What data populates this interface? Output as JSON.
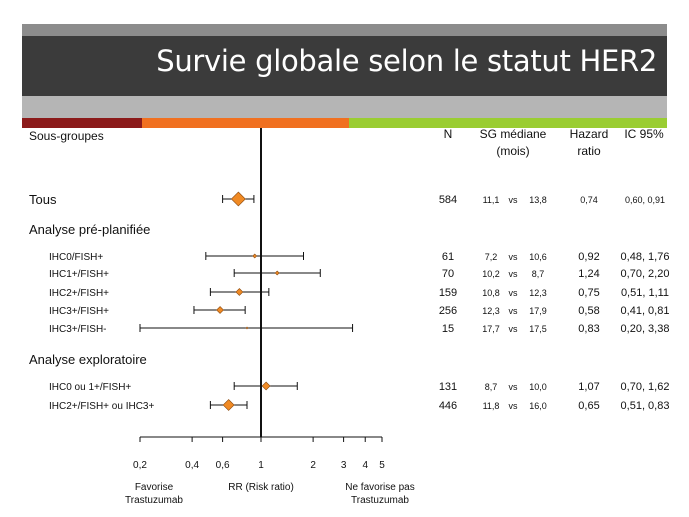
{
  "slide": {
    "title": "Survie globale selon le statut HER2",
    "colors": {
      "title_bar": "#3b3b3b",
      "accent1": "#8b1a1a",
      "accent2": "#f07020",
      "accent3": "#9acd32",
      "marker": "#f08a24",
      "highlight": "#e02020"
    },
    "color_segments": [
      "#8b1a1a",
      "#f07020",
      "#9acd32"
    ]
  },
  "table": {
    "subgroups_label": "Sous-groupes",
    "col_n": "N",
    "col_sg": "SG médiane",
    "col_sg_unit": "(mois)",
    "col_hr_1": "Hazard",
    "col_hr_2": "ratio",
    "col_ci": "IC 95%",
    "vs": "vs"
  },
  "chart_data": {
    "type": "forest",
    "xscale": "log",
    "xlim": [
      0.2,
      5
    ],
    "xticks": [
      "0,2",
      "0,4",
      "0,6",
      "1",
      "2",
      "3",
      "4",
      "5"
    ],
    "xtick_values": [
      0.2,
      0.4,
      0.6,
      1,
      2,
      3,
      4,
      5
    ],
    "reference_line": 1,
    "xlabel": "RR (Risk ratio)",
    "left_label": "Favorise Trastuzumab",
    "right_label": "Ne favorise pas Trastuzumab",
    "sections": [
      {
        "title": "Tous",
        "row": 0
      },
      {
        "title": "Analyse pré-planifiée",
        "row": 1
      },
      {
        "title": "Analyse exploratoire",
        "row": 7
      }
    ],
    "rows": [
      {
        "row": 0,
        "label": "",
        "n": "584",
        "sg1": "11,1",
        "sg2": "13,8",
        "hr": "0,74",
        "ci": "0,60, 0,91",
        "hr_value": 0.74,
        "lo": 0.6,
        "hi": 0.91,
        "size": 7,
        "highlight": false
      },
      {
        "row": 2,
        "label": "IHC0/FISH+",
        "n": "61",
        "sg1": "7,2",
        "sg2": "10,6",
        "hr": "0,92",
        "ci": "0,48, 1,76",
        "hr_value": 0.92,
        "lo": 0.48,
        "hi": 1.76,
        "size": 2,
        "highlight": false
      },
      {
        "row": 3,
        "label": "IHC1+/FISH+",
        "n": "70",
        "sg1": "10,2",
        "sg2": "8,7",
        "hr": "1,24",
        "ci": "0,70, 2,20",
        "hr_value": 1.24,
        "lo": 0.7,
        "hi": 2.2,
        "size": 2,
        "highlight": false
      },
      {
        "row": 4,
        "label": "IHC2+/FISH+",
        "n": "159",
        "sg1": "10,8",
        "sg2": "12,3",
        "hr": "0,75",
        "ci": "0,51, 1,11",
        "hr_value": 0.75,
        "lo": 0.51,
        "hi": 1.11,
        "size": 3.5,
        "highlight": false
      },
      {
        "row": 5,
        "label": "IHC3+/FISH+",
        "n": "256",
        "sg1": "12,3",
        "sg2": "17,9",
        "hr": "0,58",
        "ci": "0,41, 0,81",
        "hr_value": 0.58,
        "lo": 0.41,
        "hi": 0.81,
        "size": 3.5,
        "highlight": false
      },
      {
        "row": 6,
        "label": "IHC3+/FISH-",
        "n": "15",
        "sg1": "17,7",
        "sg2": "17,5",
        "hr": "0,83",
        "ci": "0,20, 3,38",
        "hr_value": 0.83,
        "lo": 0.2,
        "hi": 3.38,
        "size": 1,
        "highlight": false
      },
      {
        "row": 8,
        "label": "IHC0 ou 1+/FISH+",
        "n": "131",
        "sg1": "8,7",
        "sg2": "10,0",
        "hr": "1,07",
        "ci": "0,70, 1,62",
        "hr_value": 1.07,
        "lo": 0.7,
        "hi": 1.62,
        "size": 4,
        "highlight": true
      },
      {
        "row": 9,
        "label": "IHC2+/FISH+ ou IHC3+",
        "n": "446",
        "sg1": "11,8",
        "sg2": "16,0",
        "hr": "0,65",
        "ci": "0,51, 0,83",
        "hr_value": 0.65,
        "lo": 0.51,
        "hi": 0.83,
        "size": 5.5,
        "highlight": true
      }
    ]
  }
}
